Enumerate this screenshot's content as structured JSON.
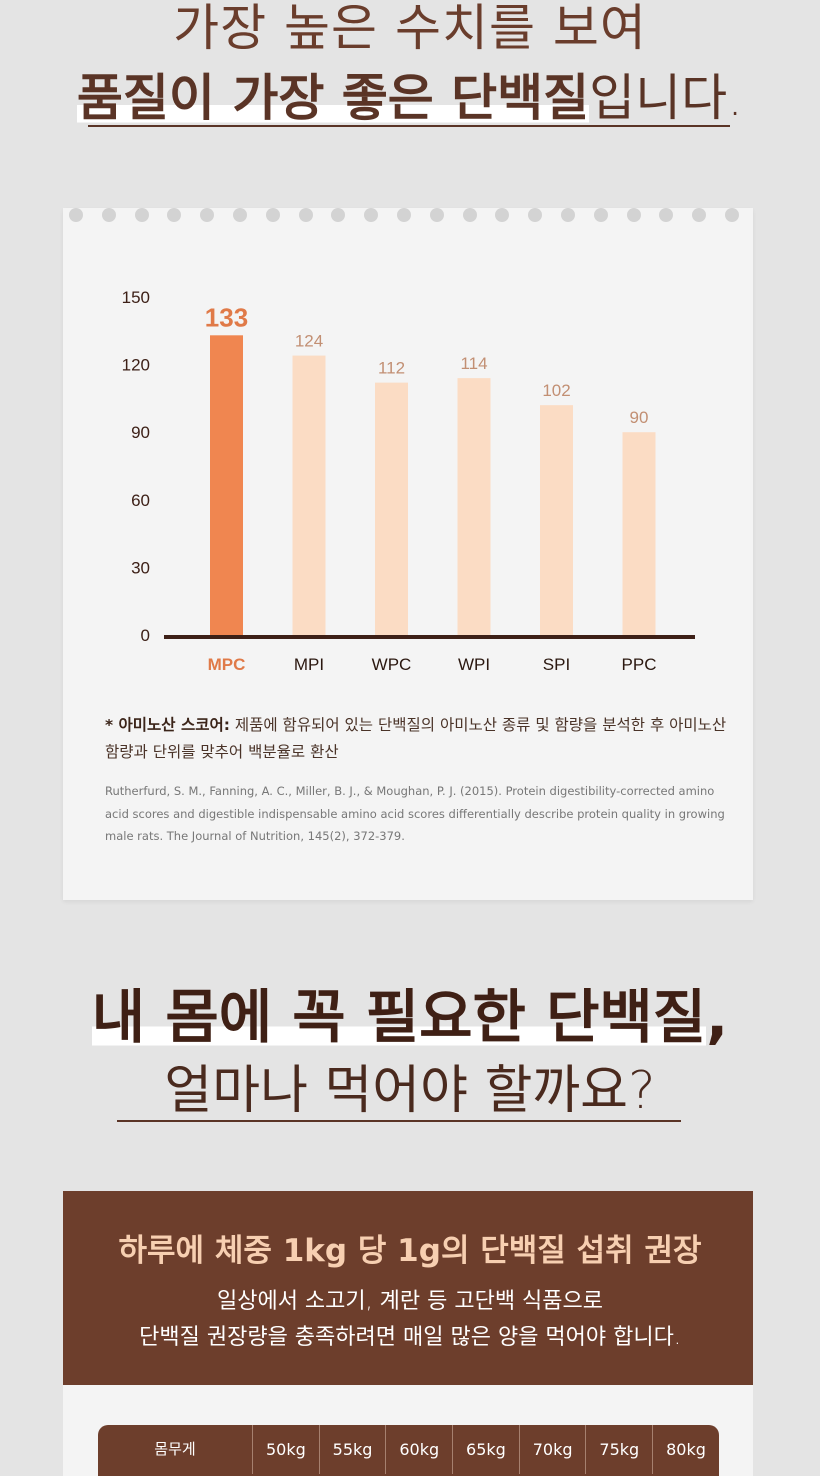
{
  "heading1": {
    "line1": "가장 높은 수치를 보여",
    "line2_bold": "품질이 가장 좋은 단백질",
    "line2_light": "입니다."
  },
  "chart_data": {
    "type": "bar",
    "categories": [
      "MPC",
      "MPI",
      "WPC",
      "WPI",
      "SPI",
      "PPC"
    ],
    "values": [
      133,
      124,
      112,
      114,
      102,
      90
    ],
    "value_labels": [
      "133",
      "124",
      "112",
      "114",
      "102",
      "90"
    ],
    "highlight_index": 0,
    "ylim": [
      0,
      150
    ],
    "yticks": [
      "0",
      "30",
      "60",
      "90",
      "120",
      "150"
    ],
    "grid": false,
    "colors": {
      "highlight": "#f08650",
      "bar": "#fbdcc4",
      "highlight_label": "#e07a48",
      "label": "#c28f73",
      "axis": "#3d2017"
    }
  },
  "note": {
    "key": "* 아미노산 스코어:",
    "text": " 제품에 함유되어 있는 단백질의 아미노산 종류 및 함량을 분석한 후 아미노산 함량과 단위를 맞추어 백분율로 환산"
  },
  "reference": "Rutherfurd, S. M., Fanning, A. C., Miller, B. J., & Moughan, P. J. (2015). Protein digestibility-corrected amino acid scores and digestible indispensable amino acid scores differentially describe protein quality in growing male rats. The Journal of Nutrition, 145(2), 372-379.",
  "heading2": {
    "line1": "내 몸에 꼭 필요한 단백질",
    "line1_suffix": ",",
    "line2": "얼마나 먹어야 할까요?"
  },
  "banner": {
    "title": "하루에 체중 1kg 당 1g의 단백질 섭취 권장",
    "desc_line1": "일상에서 소고기, 계란 등 고단백 식품으로",
    "desc_line2": "단백질 권장량을 충족하려면 매일 많은 양을 먹어야 합니다."
  },
  "weight_table": {
    "header": "몸무게",
    "weights": [
      "50kg",
      "55kg",
      "60kg",
      "65kg",
      "70kg",
      "75kg",
      "80kg"
    ]
  }
}
